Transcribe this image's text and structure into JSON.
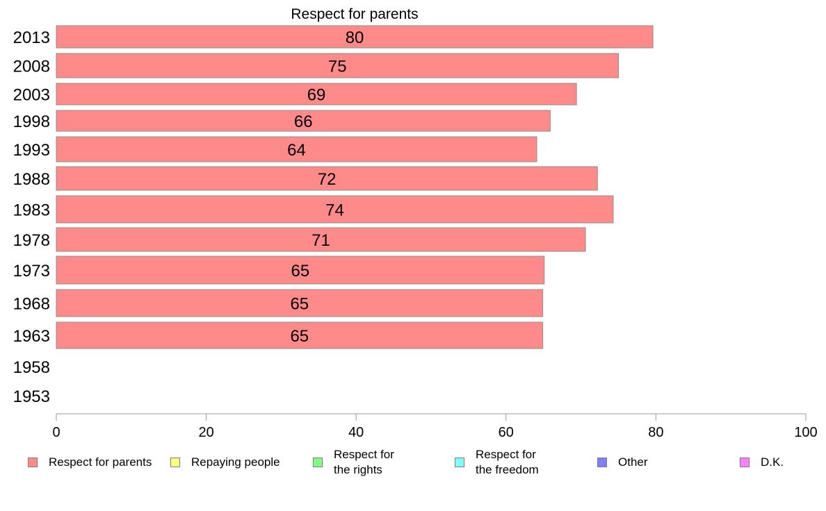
{
  "chart_data": {
    "type": "bar",
    "orientation": "horizontal",
    "title": "Respect for parents",
    "categories": [
      "2013",
      "2008",
      "2003",
      "1998",
      "1993",
      "1988",
      "1983",
      "1978",
      "1973",
      "1968",
      "1963",
      "1958",
      "1953"
    ],
    "series": [
      {
        "name": "Respect for parents",
        "color": "#ff8a8a",
        "values": [
          79.6,
          75.0,
          69.4,
          65.9,
          64.1,
          72.2,
          74.3,
          70.6,
          65.1,
          64.9,
          64.9,
          null,
          null
        ],
        "labels": [
          "80",
          "75",
          "69",
          "66",
          "64",
          "72",
          "74",
          "71",
          "65",
          "65",
          "65",
          "",
          ""
        ]
      }
    ],
    "xlim": [
      0,
      100
    ],
    "xticks": [
      0,
      20,
      40,
      60,
      80,
      100
    ],
    "xtick_labels": [
      "0",
      "20",
      "40",
      "60",
      "80",
      "100"
    ],
    "grid": false,
    "legend_position": "bottom"
  },
  "legend": {
    "items": [
      {
        "label": "Respect for parents",
        "color": "#ff8a8a"
      },
      {
        "label": "Repaying people",
        "color": "#ffff80"
      },
      {
        "label": "Respect for\nthe rights",
        "color": "#80ff80"
      },
      {
        "label": "Respect for\nthe freedom",
        "color": "#80ffff"
      },
      {
        "label": "Other",
        "color": "#8080ff"
      },
      {
        "label": "D.K.",
        "color": "#ff80ff"
      }
    ]
  }
}
